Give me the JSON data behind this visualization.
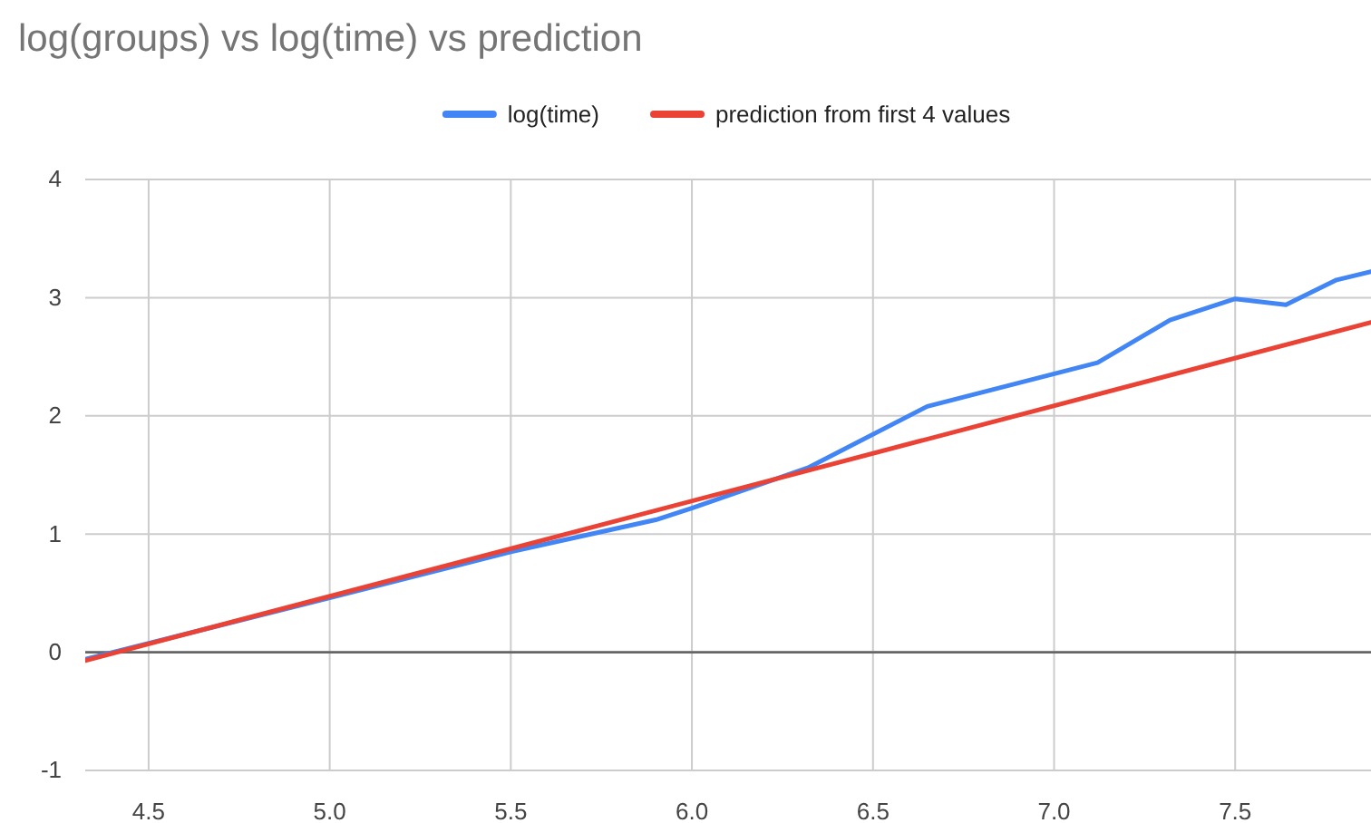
{
  "chart_data": {
    "type": "line",
    "title": "log(groups) vs log(time) vs prediction",
    "xlim": [
      4.325,
      7.875
    ],
    "xticks": [
      {
        "value": 4.5,
        "label": "4.5"
      },
      {
        "value": 5,
        "label": "5.0"
      },
      {
        "value": 5.5,
        "label": "5.5"
      },
      {
        "value": 6,
        "label": "6.0"
      },
      {
        "value": 6.5,
        "label": "6.5"
      },
      {
        "value": 7,
        "label": "7.0"
      },
      {
        "value": 7.5,
        "label": "7.5"
      }
    ],
    "ylim": [
      -1,
      4
    ],
    "yticks": [
      -1,
      0,
      1,
      2,
      3,
      4
    ],
    "grid": true,
    "legend": "top",
    "line_style": "solid",
    "marker": "none",
    "ref_lines": [
      {
        "axis": "y",
        "value": 0,
        "color": "#666666"
      }
    ],
    "series": [
      {
        "name": "log(time)",
        "color": "#4285f4",
        "x": [
          4.325,
          5.0,
          5.5,
          5.9,
          6.0,
          6.32,
          6.65,
          7.12,
          7.32,
          7.5,
          7.64,
          7.78,
          7.875
        ],
        "values": [
          -0.06,
          0.46,
          0.85,
          1.12,
          1.22,
          1.56,
          2.08,
          2.45,
          2.81,
          2.99,
          2.94,
          3.15,
          3.22
        ]
      },
      {
        "name": "prediction from first 4 values",
        "color": "#ea4335",
        "x": [
          4.325,
          7.875
        ],
        "values": [
          -0.07,
          2.79
        ]
      }
    ]
  }
}
